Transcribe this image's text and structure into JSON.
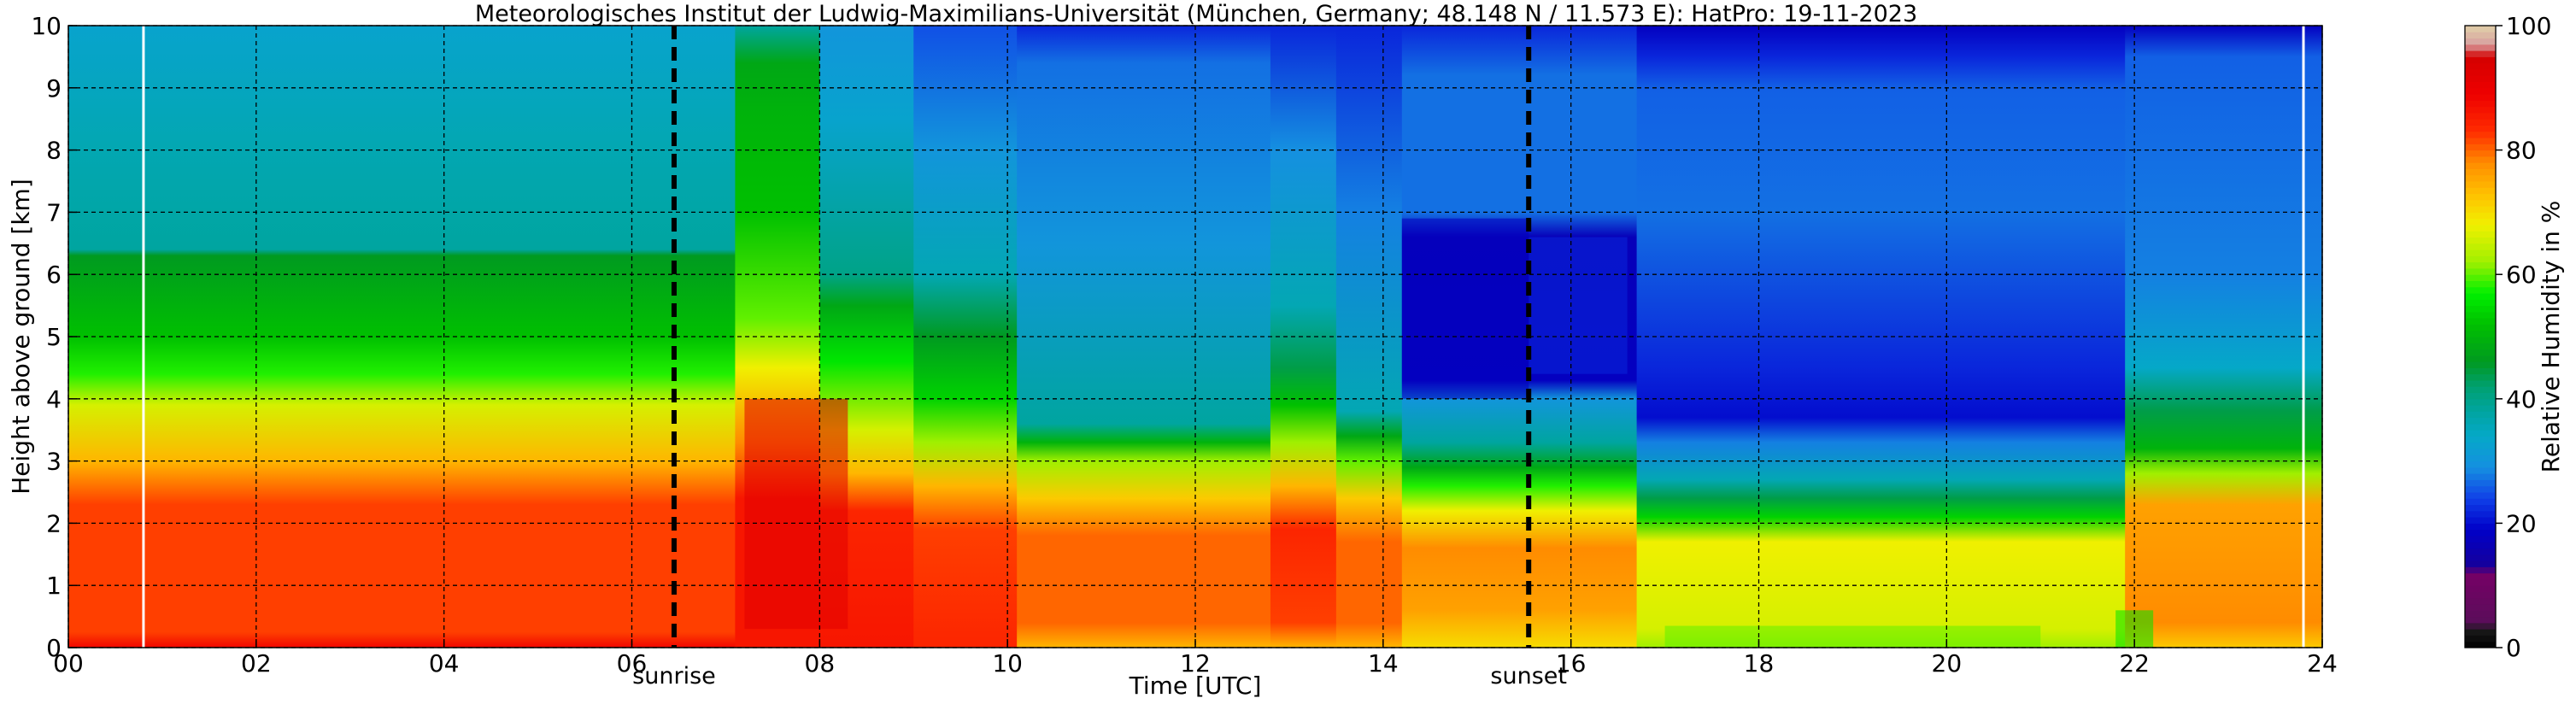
{
  "chart_data": {
    "type": "heatmap",
    "title": "Meteorologisches Institut der Ludwig-Maximilians-Universität (München, Germany; 48.148 N / 11.573 E):    HatPro: 19-11-2023",
    "xlabel": "Time [UTC]",
    "ylabel": "Height above ground [km]",
    "xlim": [
      0,
      24
    ],
    "ylim": [
      0,
      10
    ],
    "x_ticks": [
      "00",
      "02",
      "04",
      "06",
      "08",
      "10",
      "12",
      "14",
      "16",
      "18",
      "20",
      "22",
      "24"
    ],
    "y_ticks": [
      "0",
      "1",
      "2",
      "3",
      "4",
      "5",
      "6",
      "7",
      "8",
      "9",
      "10"
    ],
    "grid": true,
    "markers": [
      {
        "label": "sunrise",
        "x": 6.45
      },
      {
        "label": "sunset",
        "x": 15.55
      }
    ],
    "colorbar": {
      "label": "Relative Humidity in %",
      "range": [
        0,
        100
      ],
      "ticks": [
        "0",
        "20",
        "40",
        "60",
        "80",
        "100"
      ]
    },
    "humidity_periods": [
      {
        "from": 0.0,
        "to": 7.1,
        "profile": [
          [
            0.0,
            88
          ],
          [
            0.25,
            82
          ],
          [
            2.3,
            82
          ],
          [
            3.0,
            74
          ],
          [
            3.9,
            66
          ],
          [
            4.4,
            58
          ],
          [
            5.0,
            52
          ],
          [
            6.3,
            46
          ],
          [
            6.4,
            38
          ],
          [
            8.2,
            36
          ],
          [
            10,
            33
          ]
        ]
      },
      {
        "from": 7.1,
        "to": 8.0,
        "profile": [
          [
            0.0,
            86
          ],
          [
            2.4,
            86
          ],
          [
            3.3,
            78
          ],
          [
            4.5,
            68
          ],
          [
            5.3,
            60
          ],
          [
            7.0,
            52
          ],
          [
            8.6,
            50
          ],
          [
            9.4,
            48
          ],
          [
            10,
            38
          ]
        ]
      },
      {
        "from": 8.0,
        "to": 9.0,
        "profile": [
          [
            0.0,
            86
          ],
          [
            2.2,
            84
          ],
          [
            2.8,
            74
          ],
          [
            3.5,
            66
          ],
          [
            4.6,
            56
          ],
          [
            5.5,
            48
          ],
          [
            6.0,
            40
          ],
          [
            8.5,
            33
          ],
          [
            10,
            30
          ]
        ]
      },
      {
        "from": 9.0,
        "to": 10.1,
        "profile": [
          [
            0.0,
            84
          ],
          [
            1.9,
            82
          ],
          [
            2.6,
            74
          ],
          [
            3.3,
            62
          ],
          [
            4.0,
            54
          ],
          [
            5.0,
            46
          ],
          [
            6.0,
            36
          ],
          [
            8.0,
            30
          ],
          [
            10,
            25
          ]
        ]
      },
      {
        "from": 10.1,
        "to": 12.8,
        "profile": [
          [
            0.0,
            74
          ],
          [
            0.4,
            80
          ],
          [
            1.8,
            80
          ],
          [
            2.4,
            72
          ],
          [
            3.0,
            62
          ],
          [
            3.3,
            50
          ],
          [
            3.6,
            38
          ],
          [
            6.5,
            30
          ],
          [
            9.4,
            27
          ],
          [
            10,
            22
          ]
        ]
      },
      {
        "from": 12.8,
        "to": 13.5,
        "profile": [
          [
            0.0,
            74
          ],
          [
            0.4,
            82
          ],
          [
            1.9,
            84
          ],
          [
            2.6,
            74
          ],
          [
            3.3,
            62
          ],
          [
            3.9,
            52
          ],
          [
            4.5,
            44
          ],
          [
            5.5,
            36
          ],
          [
            8.0,
            29
          ],
          [
            10,
            22
          ]
        ]
      },
      {
        "from": 13.5,
        "to": 14.2,
        "profile": [
          [
            0.0,
            74
          ],
          [
            0.4,
            80
          ],
          [
            1.7,
            80
          ],
          [
            2.4,
            72
          ],
          [
            3.0,
            60
          ],
          [
            3.4,
            48
          ],
          [
            3.8,
            36
          ],
          [
            7.0,
            28
          ],
          [
            10,
            22
          ]
        ]
      },
      {
        "from": 14.2,
        "to": 16.7,
        "profile": [
          [
            0.0,
            70
          ],
          [
            0.6,
            76
          ],
          [
            1.6,
            78
          ],
          [
            2.2,
            68
          ],
          [
            2.6,
            58
          ],
          [
            2.9,
            48
          ],
          [
            3.3,
            38
          ],
          [
            4.0,
            30
          ],
          [
            4.3,
            18
          ],
          [
            6.6,
            17
          ],
          [
            7.0,
            27
          ],
          [
            9.2,
            27
          ],
          [
            10,
            22
          ]
        ]
      },
      {
        "from": 16.7,
        "to": 21.9,
        "profile": [
          [
            0.0,
            62
          ],
          [
            0.3,
            66
          ],
          [
            1.7,
            68
          ],
          [
            2.1,
            54
          ],
          [
            2.4,
            44
          ],
          [
            2.7,
            36
          ],
          [
            3.3,
            28
          ],
          [
            3.7,
            20
          ],
          [
            4.5,
            22
          ],
          [
            7.0,
            27
          ],
          [
            9.0,
            26
          ],
          [
            9.5,
            22
          ],
          [
            10,
            18
          ]
        ]
      },
      {
        "from": 21.9,
        "to": 24.0,
        "profile": [
          [
            0.0,
            72
          ],
          [
            0.4,
            78
          ],
          [
            2.3,
            76
          ],
          [
            2.8,
            62
          ],
          [
            3.2,
            50
          ],
          [
            3.8,
            44
          ],
          [
            4.5,
            34
          ],
          [
            6.0,
            28
          ],
          [
            9.5,
            26
          ],
          [
            10,
            18
          ]
        ]
      }
    ],
    "overlays": [
      {
        "from": 14.2,
        "to": 15.55,
        "y0": 4.0,
        "y1": 6.9,
        "value": 18
      },
      {
        "from": 15.55,
        "to": 16.6,
        "y0": 4.4,
        "y1": 6.6,
        "value": 22
      },
      {
        "from": 7.2,
        "to": 8.3,
        "y0": 0.3,
        "y1": 4.0,
        "value": 92
      },
      {
        "from": 21.8,
        "to": 22.2,
        "y0": 0.0,
        "y1": 0.6,
        "value": 56
      },
      {
        "from": 17.0,
        "to": 21.0,
        "y0": 0.0,
        "y1": 0.35,
        "value": 60
      }
    ],
    "missing_data_columns": [
      0.8,
      23.8
    ]
  }
}
